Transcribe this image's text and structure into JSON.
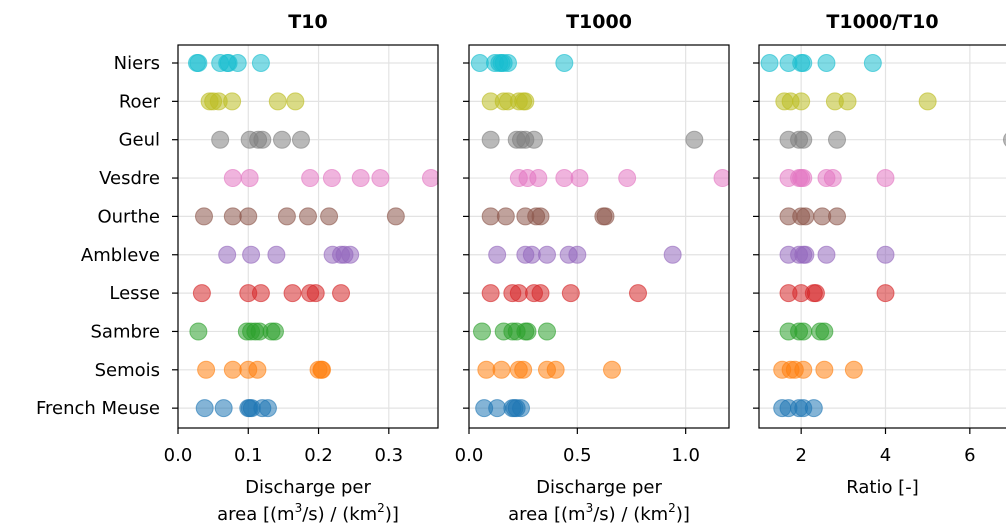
{
  "chart_data": {
    "type": "scatter",
    "categories": [
      "Niers",
      "Roer",
      "Geul",
      "Vesdre",
      "Ourthe",
      "Ambleve",
      "Lesse",
      "Sambre",
      "Semois",
      "French Meuse"
    ],
    "colors": [
      "#17becf",
      "#bcbd22",
      "#7f7f7f",
      "#e377c2",
      "#8c564b",
      "#9467bd",
      "#d62728",
      "#2ca02c",
      "#ff7f0e",
      "#1f77b4"
    ],
    "grid": true,
    "panels": [
      {
        "title": "T10",
        "xlabel_line1": "Discharge per",
        "xlabel_line2_pre": "area [(m",
        "xlabel_sup1": "3",
        "xlabel_line2_mid": "/s) / (km",
        "xlabel_sup2": "2",
        "xlabel_line2_post": ")]",
        "xlim": [
          0,
          0.37
        ],
        "xticks": [
          0.0,
          0.1,
          0.2,
          0.3
        ],
        "xtick_labels": [
          "0.0",
          "0.1",
          "0.2",
          "0.3"
        ],
        "points": [
          [
            0.027,
            0.029,
            0.06,
            0.07,
            0.072,
            0.085,
            0.118
          ],
          [
            0.045,
            0.05,
            0.058,
            0.077,
            0.142,
            0.167
          ],
          [
            0.06,
            0.102,
            0.114,
            0.12,
            0.148,
            0.175
          ],
          [
            0.078,
            0.102,
            0.188,
            0.219,
            0.26,
            0.288,
            0.36
          ],
          [
            0.037,
            0.078,
            0.1,
            0.155,
            0.185,
            0.215,
            0.31
          ],
          [
            0.07,
            0.104,
            0.14,
            0.22,
            0.232,
            0.237,
            0.245
          ],
          [
            0.034,
            0.1,
            0.118,
            0.163,
            0.188,
            0.196,
            0.232
          ],
          [
            0.029,
            0.098,
            0.104,
            0.11,
            0.116,
            0.133,
            0.138
          ],
          [
            0.04,
            0.078,
            0.1,
            0.113,
            0.2,
            0.204,
            0.205
          ],
          [
            0.038,
            0.065,
            0.1,
            0.102,
            0.105,
            0.12,
            0.128
          ]
        ]
      },
      {
        "title": "T1000",
        "xlabel_line1": "Discharge per",
        "xlabel_line2_pre": "area [(m",
        "xlabel_sup1": "3",
        "xlabel_line2_mid": "/s) / (km",
        "xlabel_sup2": "2",
        "xlabel_line2_post": ")]",
        "xlim": [
          0,
          1.2
        ],
        "xticks": [
          0.0,
          0.5,
          1.0
        ],
        "xtick_labels": [
          "0.0",
          "0.5",
          "1.0"
        ],
        "points": [
          [
            0.05,
            0.12,
            0.14,
            0.15,
            0.16,
            0.18,
            0.44
          ],
          [
            0.1,
            0.16,
            0.18,
            0.23,
            0.25,
            0.26
          ],
          [
            0.1,
            0.22,
            0.24,
            0.26,
            0.3,
            1.04
          ],
          [
            0.23,
            0.27,
            0.32,
            0.44,
            0.51,
            0.73,
            1.17
          ],
          [
            0.1,
            0.17,
            0.26,
            0.31,
            0.33,
            0.62,
            0.63
          ],
          [
            0.13,
            0.26,
            0.29,
            0.36,
            0.46,
            0.5,
            0.94
          ],
          [
            0.1,
            0.2,
            0.23,
            0.3,
            0.33,
            0.47,
            0.78
          ],
          [
            0.06,
            0.16,
            0.2,
            0.22,
            0.26,
            0.27,
            0.36
          ],
          [
            0.08,
            0.15,
            0.23,
            0.25,
            0.36,
            0.4,
            0.66
          ],
          [
            0.07,
            0.13,
            0.2,
            0.21,
            0.22,
            0.24
          ]
        ]
      },
      {
        "title": "T1000/T10",
        "xlabel_line1": "Ratio [-]",
        "xlim": [
          1.0,
          7.0
        ],
        "xticks": [
          2,
          4,
          6
        ],
        "xtick_labels": [
          "2",
          "4",
          "6"
        ],
        "points": [
          [
            1.25,
            1.7,
            2.0,
            2.05,
            2.6,
            3.7
          ],
          [
            1.6,
            1.75,
            2.0,
            2.8,
            3.1,
            5.0
          ],
          [
            1.7,
            1.95,
            2.05,
            2.85,
            7.0
          ],
          [
            1.7,
            1.95,
            2.0,
            2.05,
            2.6,
            2.75,
            4.0
          ],
          [
            1.7,
            2.0,
            2.1,
            2.5,
            2.85
          ],
          [
            1.7,
            1.95,
            2.05,
            2.1,
            2.6,
            4.0
          ],
          [
            1.7,
            2.0,
            2.3,
            2.35,
            4.0
          ],
          [
            1.7,
            1.95,
            2.05,
            2.45,
            2.55
          ],
          [
            1.55,
            1.75,
            1.85,
            2.05,
            2.55,
            3.25
          ],
          [
            1.55,
            1.7,
            1.95,
            2.05,
            2.3
          ]
        ]
      }
    ]
  }
}
